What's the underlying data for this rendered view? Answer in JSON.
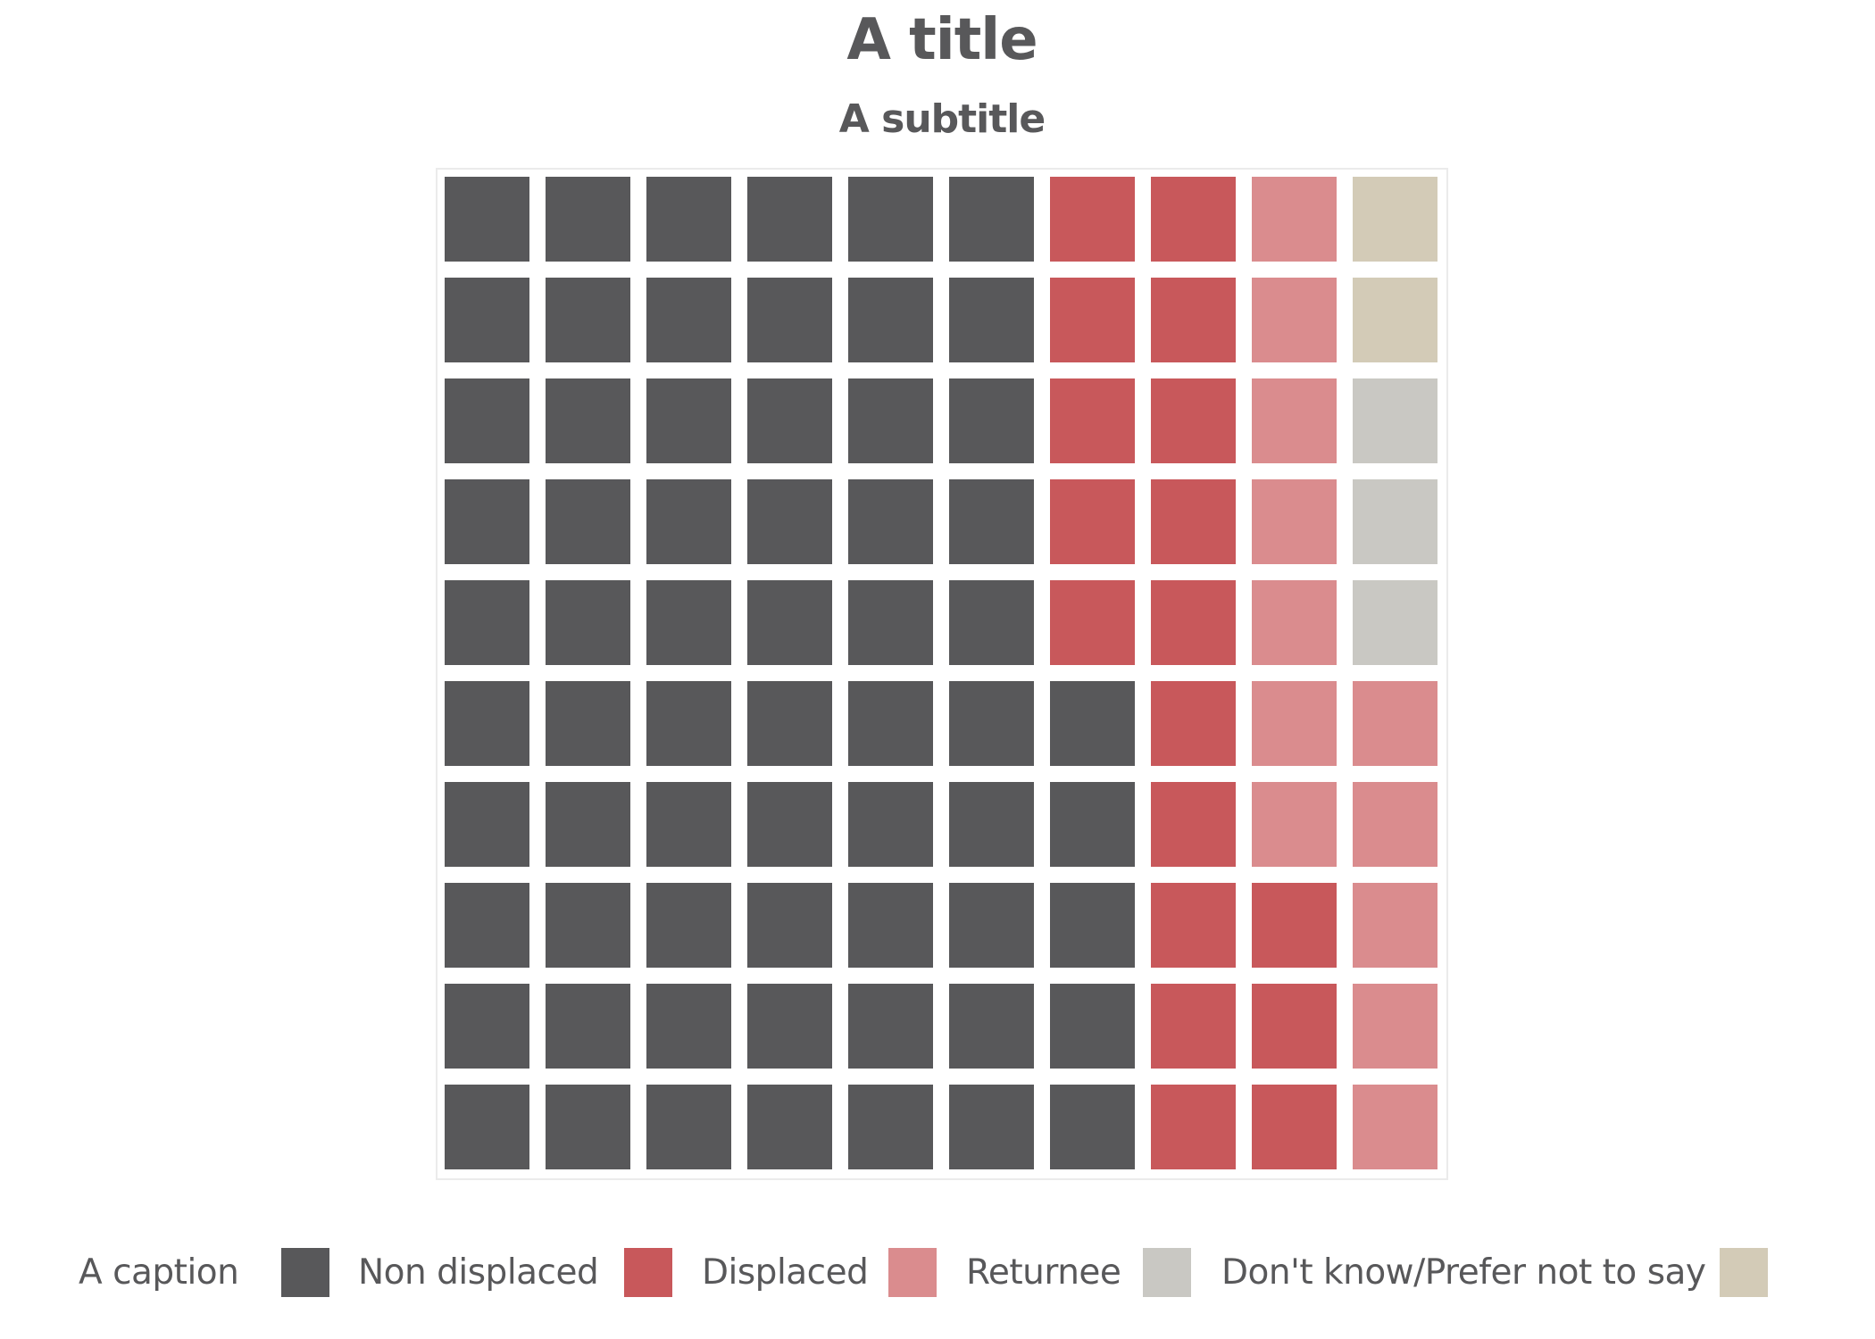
{
  "chart_data": {
    "type": "waffle",
    "title": "A title",
    "subtitle": "A subtitle",
    "caption": "A caption",
    "categories": [
      {
        "name": "Non displaced",
        "value": 65,
        "color": "#58585a"
      },
      {
        "name": "Displaced",
        "value": 18,
        "color": "#c8585b"
      },
      {
        "name": "Returnee",
        "value": 12,
        "color": "#da8c8e"
      },
      {
        "name": "Don't know/Prefer not to say",
        "value": 3,
        "color": "#c9c8c3"
      },
      {
        "name": "",
        "value": 2,
        "color": "#d3cbb7"
      }
    ],
    "grid_rows": [
      [
        0,
        0,
        0,
        0,
        0,
        0,
        1,
        1,
        2,
        4
      ],
      [
        0,
        0,
        0,
        0,
        0,
        0,
        1,
        1,
        2,
        4
      ],
      [
        0,
        0,
        0,
        0,
        0,
        0,
        1,
        1,
        2,
        3
      ],
      [
        0,
        0,
        0,
        0,
        0,
        0,
        1,
        1,
        2,
        3
      ],
      [
        0,
        0,
        0,
        0,
        0,
        0,
        1,
        1,
        2,
        3
      ],
      [
        0,
        0,
        0,
        0,
        0,
        0,
        0,
        1,
        2,
        2
      ],
      [
        0,
        0,
        0,
        0,
        0,
        0,
        0,
        1,
        2,
        2
      ],
      [
        0,
        0,
        0,
        0,
        0,
        0,
        0,
        1,
        1,
        2
      ],
      [
        0,
        0,
        0,
        0,
        0,
        0,
        0,
        1,
        1,
        2
      ],
      [
        0,
        0,
        0,
        0,
        0,
        0,
        0,
        1,
        1,
        2
      ]
    ],
    "legend_position": "bottom"
  }
}
